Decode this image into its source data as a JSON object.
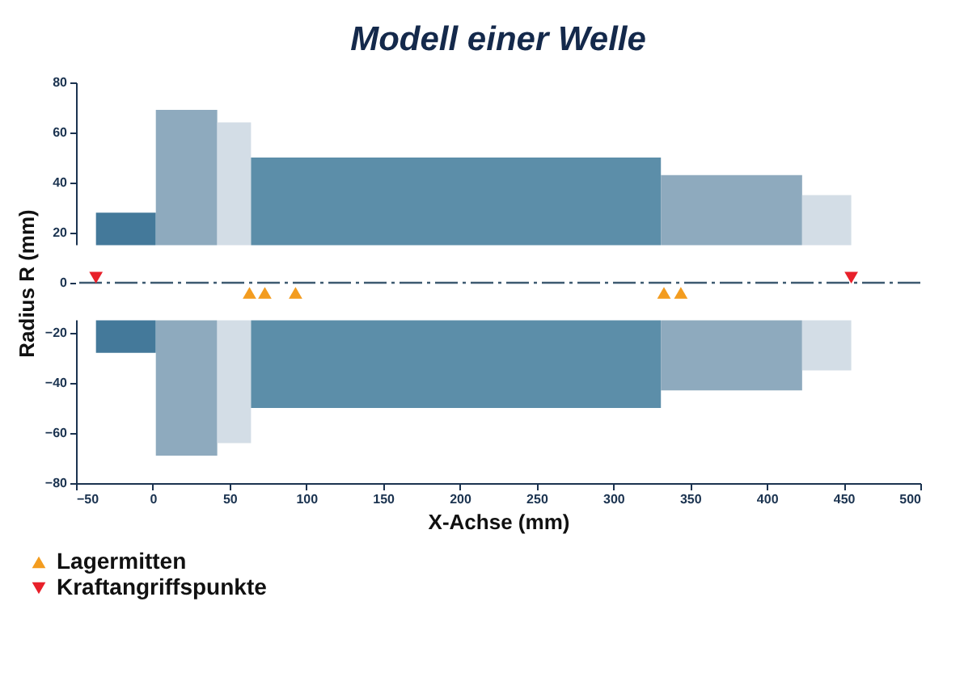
{
  "chart_data": {
    "type": "area",
    "title": "Modell einer Welle",
    "xlabel": "X-Achse (mm)",
    "ylabel": "Radius R (mm)",
    "xlim": [
      -50,
      500
    ],
    "xticks": [
      -50,
      0,
      50,
      100,
      150,
      200,
      250,
      300,
      350,
      400,
      450,
      500
    ],
    "ylim": [
      -80,
      80
    ],
    "yticks": [
      -80,
      -60,
      -40,
      -20,
      0,
      20,
      40,
      60,
      80
    ],
    "grid": false,
    "legend": "bottom left",
    "bands": [
      {
        "axis": "y",
        "from": -15,
        "to": 15,
        "color": "#ffffff"
      }
    ],
    "ref_lines": [
      {
        "axis": "y",
        "value": 0,
        "color": "#3d5a70",
        "line_style": "dashed"
      }
    ],
    "series": [
      {
        "color": "#44799a",
        "x": [
          -37,
          2
        ],
        "values": [
          28,
          28
        ]
      },
      {
        "color": "#44799a",
        "x": [
          -37,
          2
        ],
        "values": [
          -28,
          -28
        ]
      },
      {
        "color": "#8eaabe",
        "x": [
          2,
          42
        ],
        "values": [
          69,
          69
        ]
      },
      {
        "color": "#8eaabe",
        "x": [
          2,
          42
        ],
        "values": [
          -69,
          -69
        ]
      },
      {
        "color": "#d3dde6",
        "x": [
          42,
          64
        ],
        "values": [
          64,
          64
        ]
      },
      {
        "color": "#d3dde6",
        "x": [
          42,
          64
        ],
        "values": [
          -64,
          -64
        ]
      },
      {
        "color": "#5c8ea9",
        "x": [
          64,
          331
        ],
        "values": [
          50,
          50
        ]
      },
      {
        "color": "#5c8ea9",
        "x": [
          64,
          331
        ],
        "values": [
          -50,
          -50
        ]
      },
      {
        "color": "#8eaabe",
        "x": [
          331,
          423
        ],
        "values": [
          43,
          43
        ]
      },
      {
        "color": "#8eaabe",
        "x": [
          331,
          423
        ],
        "values": [
          -43,
          -43
        ]
      },
      {
        "color": "#d3dde6",
        "x": [
          423,
          455
        ],
        "values": [
          35,
          35
        ]
      },
      {
        "color": "#d3dde6",
        "x": [
          423,
          455
        ],
        "values": [
          -35,
          -35
        ]
      },
      {
        "type": "scatter",
        "name": "Lagermitten",
        "color": "#f39c1f",
        "marker": "triangle",
        "x": [
          63,
          73,
          93,
          333,
          344
        ],
        "values": [
          -4,
          -4,
          -4,
          -4,
          -4
        ]
      },
      {
        "type": "scatter",
        "name": "Kraftangriffspunkte",
        "color": "#e8202a",
        "marker": "triangle-down",
        "x": [
          -37,
          455
        ],
        "values": [
          2,
          2
        ]
      }
    ]
  }
}
